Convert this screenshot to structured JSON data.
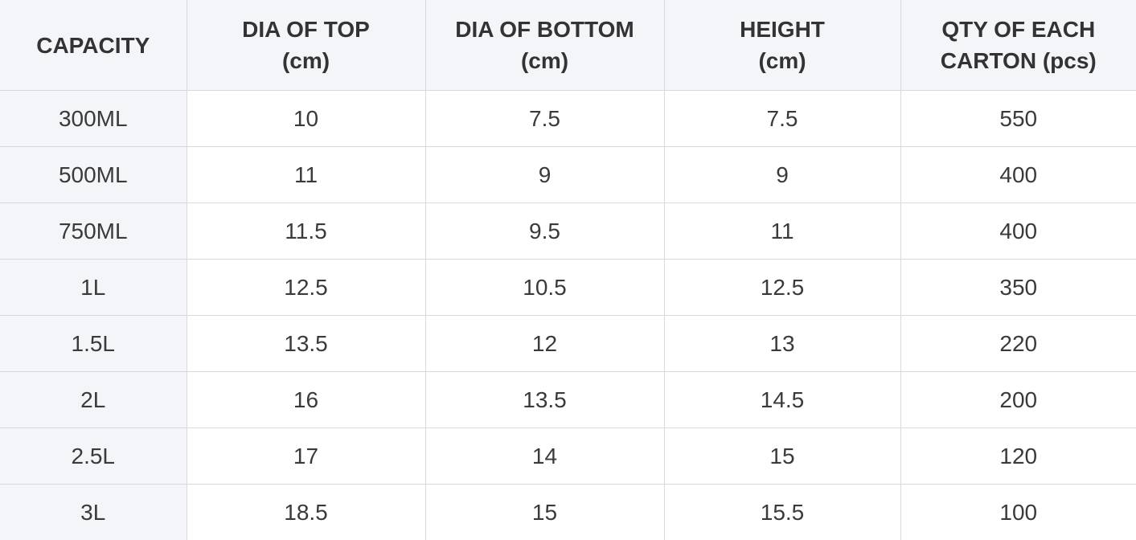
{
  "table": {
    "headers": [
      {
        "line1": "CAPACITY",
        "line2": ""
      },
      {
        "line1": "DIA OF TOP",
        "line2": "(cm)"
      },
      {
        "line1": "DIA OF BOTTOM",
        "line2": "(cm)"
      },
      {
        "line1": "HEIGHT",
        "line2": "(cm)"
      },
      {
        "line1": "QTY OF EACH",
        "line2": "CARTON (pcs)"
      }
    ],
    "rows": [
      [
        "300ML",
        "10",
        "7.5",
        "7.5",
        "550"
      ],
      [
        "500ML",
        "11",
        "9",
        "9",
        "400"
      ],
      [
        "750ML",
        "11.5",
        "9.5",
        "11",
        "400"
      ],
      [
        "1L",
        "12.5",
        "10.5",
        "12.5",
        "350"
      ],
      [
        "1.5L",
        "13.5",
        "12",
        "13",
        "220"
      ],
      [
        "2L",
        "16",
        "13.5",
        "14.5",
        "200"
      ],
      [
        "2.5L",
        "17",
        "14",
        "15",
        "120"
      ],
      [
        "3L",
        "18.5",
        "15",
        "15.5",
        "100"
      ]
    ]
  }
}
